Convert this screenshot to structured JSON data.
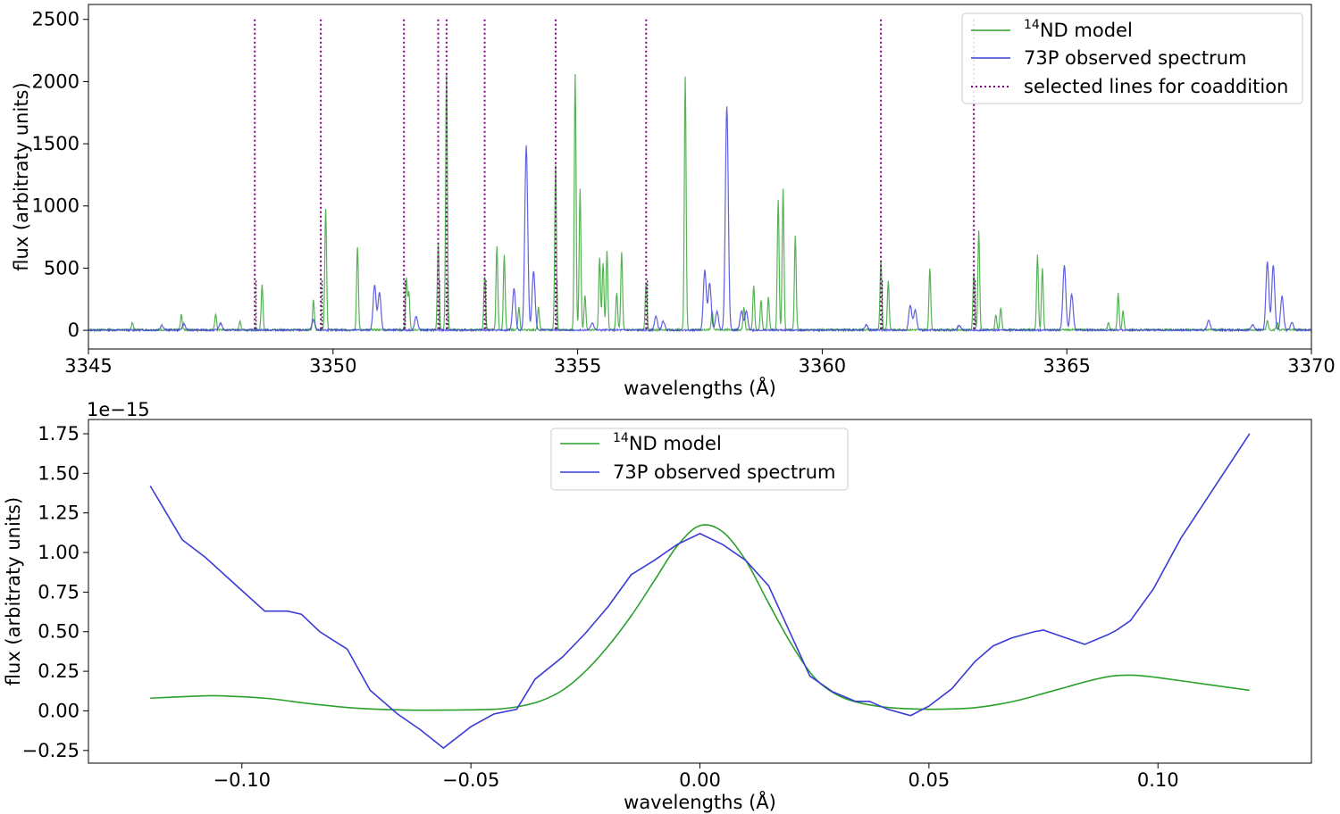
{
  "colors": {
    "model": "#2ca02c",
    "observed": "#3a3ad6",
    "selected": "#800080",
    "black_dotted": "#222222"
  },
  "chart_data": [
    {
      "type": "line",
      "xlabel": "wavelengths (Å)",
      "ylabel": "flux (arbitraty units)",
      "xlim": [
        3345,
        3370
      ],
      "ylim": [
        -150,
        2620
      ],
      "xticks": [
        3345,
        3350,
        3355,
        3360,
        3365,
        3370
      ],
      "xtick_labels": [
        "3345",
        "3350",
        "3355",
        "3360",
        "3365",
        "3370"
      ],
      "yticks": [
        0,
        500,
        1000,
        1500,
        2000,
        2500
      ],
      "ytick_labels": [
        "0",
        "500",
        "1000",
        "1500",
        "2000",
        "2500"
      ],
      "legend": {
        "position": "top-right",
        "model_sup": "14",
        "model_label": "ND model",
        "observed_label": "73P observed spectrum",
        "selected_label": "selected lines for coaddition"
      },
      "selected_lines": [
        3348.4,
        3349.75,
        3351.45,
        3352.15,
        3352.32,
        3353.1,
        3354.55,
        3356.4,
        3361.2,
        3363.1
      ],
      "series": [
        {
          "name": "14ND model",
          "peaks": [
            [
              3345.9,
              60
            ],
            [
              3346.9,
              120
            ],
            [
              3347.6,
              130
            ],
            [
              3348.1,
              70
            ],
            [
              3348.55,
              360
            ],
            [
              3349.6,
              240
            ],
            [
              3349.85,
              980
            ],
            [
              3350.5,
              670
            ],
            [
              3351.5,
              410
            ],
            [
              3351.55,
              300
            ],
            [
              3352.15,
              700
            ],
            [
              3352.32,
              2060
            ],
            [
              3353.1,
              430
            ],
            [
              3353.35,
              670
            ],
            [
              3353.5,
              600
            ],
            [
              3353.8,
              180
            ],
            [
              3354.2,
              180
            ],
            [
              3354.55,
              1320
            ],
            [
              3354.95,
              2060
            ],
            [
              3355.05,
              1130
            ],
            [
              3355.15,
              280
            ],
            [
              3355.45,
              580
            ],
            [
              3355.52,
              540
            ],
            [
              3355.6,
              630
            ],
            [
              3355.8,
              300
            ],
            [
              3355.9,
              620
            ],
            [
              3356.4,
              370
            ],
            [
              3357.2,
              2040
            ],
            [
              3357.75,
              150
            ],
            [
              3358.4,
              180
            ],
            [
              3358.6,
              360
            ],
            [
              3358.75,
              240
            ],
            [
              3358.9,
              260
            ],
            [
              3359.1,
              1050
            ],
            [
              3359.2,
              1130
            ],
            [
              3359.45,
              760
            ],
            [
              3361.2,
              560
            ],
            [
              3361.35,
              400
            ],
            [
              3362.2,
              500
            ],
            [
              3363.1,
              460
            ],
            [
              3363.2,
              800
            ],
            [
              3363.55,
              120
            ],
            [
              3363.65,
              180
            ],
            [
              3364.4,
              600
            ],
            [
              3364.5,
              500
            ],
            [
              3365.85,
              60
            ],
            [
              3366.05,
              290
            ],
            [
              3366.15,
              150
            ],
            [
              3369.1,
              80
            ],
            [
              3369.3,
              60
            ]
          ]
        },
        {
          "name": "73P observed spectrum",
          "peaks": [
            [
              3346.5,
              40
            ],
            [
              3346.95,
              50
            ],
            [
              3347.7,
              55
            ],
            [
              3349.6,
              80
            ],
            [
              3350.85,
              360
            ],
            [
              3350.95,
              300
            ],
            [
              3351.7,
              110
            ],
            [
              3353.7,
              330
            ],
            [
              3353.95,
              1480
            ],
            [
              3354.1,
              480
            ],
            [
              3355.3,
              60
            ],
            [
              3356.6,
              110
            ],
            [
              3356.75,
              70
            ],
            [
              3357.6,
              480
            ],
            [
              3357.7,
              380
            ],
            [
              3357.85,
              150
            ],
            [
              3358.05,
              1800
            ],
            [
              3358.35,
              150
            ],
            [
              3358.45,
              150
            ],
            [
              3360.9,
              40
            ],
            [
              3361.8,
              200
            ],
            [
              3361.9,
              160
            ],
            [
              3362.8,
              40
            ],
            [
              3364.95,
              520
            ],
            [
              3365.1,
              290
            ],
            [
              3367.9,
              80
            ],
            [
              3368.8,
              40
            ],
            [
              3369.1,
              550
            ],
            [
              3369.22,
              520
            ],
            [
              3369.4,
              270
            ],
            [
              3369.6,
              60
            ]
          ]
        }
      ]
    },
    {
      "type": "line",
      "xlabel": "wavelengths (Å)",
      "ylabel": "flux (arbitraty units)",
      "offset_text": "1e−15",
      "xlim": [
        -0.1335,
        0.1335
      ],
      "ylim": [
        -0.33,
        1.84
      ],
      "xticks": [
        -0.1,
        -0.05,
        0.0,
        0.05,
        0.1
      ],
      "xtick_labels": [
        "−0.10",
        "−0.05",
        "0.00",
        "0.05",
        "0.10"
      ],
      "yticks": [
        -0.25,
        0.0,
        0.25,
        0.5,
        0.75,
        1.0,
        1.25,
        1.5,
        1.75
      ],
      "ytick_labels": [
        "−0.25",
        "0.00",
        "0.25",
        "0.50",
        "0.75",
        "1.00",
        "1.25",
        "1.50",
        "1.75"
      ],
      "legend": {
        "position": "top-center",
        "model_sup": "14",
        "model_label": "ND model",
        "observed_label": "73P observed spectrum"
      },
      "series": [
        {
          "name": "14ND model",
          "x": [
            -0.12,
            -0.11,
            -0.105,
            -0.095,
            -0.085,
            -0.075,
            -0.065,
            -0.055,
            -0.045,
            -0.04,
            -0.035,
            -0.03,
            -0.025,
            -0.02,
            -0.015,
            -0.01,
            -0.005,
            0.0,
            0.005,
            0.01,
            0.015,
            0.02,
            0.025,
            0.03,
            0.035,
            0.04,
            0.045,
            0.05,
            0.055,
            0.06,
            0.065,
            0.07,
            0.075,
            0.08,
            0.085,
            0.09,
            0.095,
            0.1,
            0.11,
            0.12
          ],
          "y": [
            0.08,
            0.093,
            0.095,
            0.08,
            0.045,
            0.017,
            0.006,
            0.005,
            0.01,
            0.025,
            0.06,
            0.13,
            0.25,
            0.41,
            0.6,
            0.82,
            1.04,
            1.17,
            1.13,
            0.95,
            0.68,
            0.42,
            0.21,
            0.1,
            0.05,
            0.025,
            0.014,
            0.01,
            0.012,
            0.02,
            0.04,
            0.07,
            0.11,
            0.15,
            0.19,
            0.22,
            0.225,
            0.21,
            0.17,
            0.13
          ]
        },
        {
          "name": "73P observed spectrum",
          "x": [
            -0.12,
            -0.113,
            -0.108,
            -0.1,
            -0.095,
            -0.09,
            -0.087,
            -0.083,
            -0.077,
            -0.072,
            -0.066,
            -0.061,
            -0.056,
            -0.05,
            -0.045,
            -0.04,
            -0.036,
            -0.03,
            -0.025,
            -0.02,
            -0.015,
            -0.01,
            -0.005,
            0.0,
            0.005,
            0.01,
            0.015,
            0.024,
            0.029,
            0.034,
            0.037,
            0.041,
            0.046,
            0.05,
            0.055,
            0.06,
            0.064,
            0.068,
            0.073,
            0.075,
            0.08,
            0.084,
            0.089,
            0.091,
            0.094,
            0.099,
            0.105,
            0.12
          ],
          "y": [
            1.42,
            1.08,
            0.97,
            0.76,
            0.63,
            0.63,
            0.61,
            0.5,
            0.39,
            0.13,
            -0.02,
            -0.12,
            -0.235,
            -0.1,
            -0.02,
            0.01,
            0.2,
            0.34,
            0.49,
            0.66,
            0.86,
            0.95,
            1.05,
            1.12,
            1.05,
            0.95,
            0.79,
            0.22,
            0.12,
            0.06,
            0.06,
            0.01,
            -0.03,
            0.03,
            0.14,
            0.31,
            0.41,
            0.46,
            0.5,
            0.51,
            0.46,
            0.42,
            0.48,
            0.51,
            0.57,
            0.77,
            1.09,
            1.75
          ]
        }
      ]
    }
  ]
}
